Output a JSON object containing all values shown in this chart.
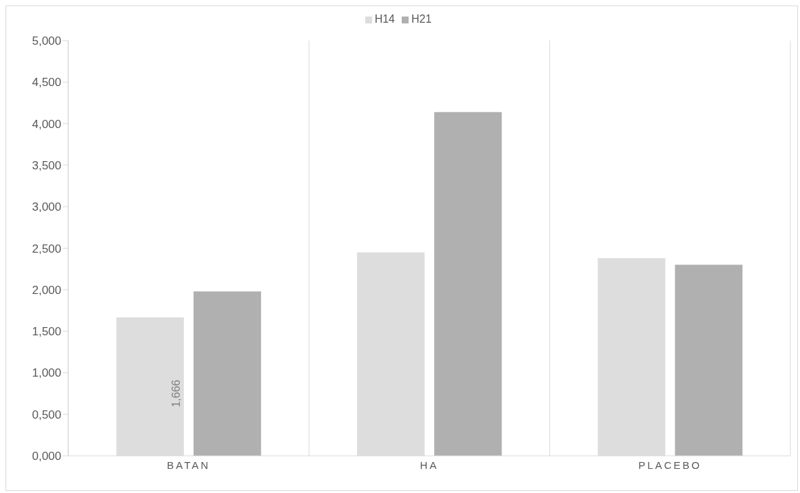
{
  "chart_data": {
    "type": "bar",
    "categories": [
      "BATAN",
      "HA",
      "PLACEBO"
    ],
    "series": [
      {
        "name": "H14",
        "color": "#dddddd",
        "values": [
          1.666,
          2.45,
          2.38
        ],
        "value_labels": [
          "1,666",
          null,
          null
        ]
      },
      {
        "name": "H21",
        "color": "#b0b0b0",
        "values": [
          1.98,
          4.14,
          2.3
        ]
      }
    ],
    "ylim": [
      0,
      5
    ],
    "yticks": [
      {
        "value": 0,
        "label": "0,000"
      },
      {
        "value": 0.5,
        "label": "0,500"
      },
      {
        "value": 1,
        "label": "1,000"
      },
      {
        "value": 1.5,
        "label": "1,500"
      },
      {
        "value": 2,
        "label": "2,000"
      },
      {
        "value": 2.5,
        "label": "2,500"
      },
      {
        "value": 3,
        "label": "3,000"
      },
      {
        "value": 3.5,
        "label": "3,500"
      },
      {
        "value": 4,
        "label": "4,000"
      },
      {
        "value": 4.5,
        "label": "4,500"
      },
      {
        "value": 5,
        "label": "5,000"
      }
    ],
    "grid": "x",
    "legend": "top"
  }
}
